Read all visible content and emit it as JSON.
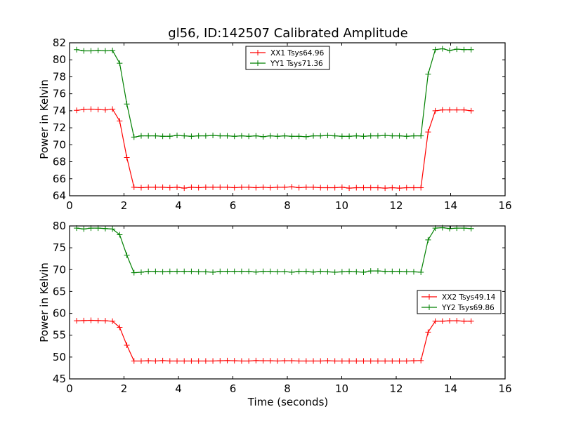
{
  "chart_data": [
    {
      "type": "line",
      "title": "gl56, ID:142507 Calibrated Amplitude",
      "xlabel": "",
      "ylabel": "Power in Kelvin",
      "xlim": [
        0,
        16
      ],
      "ylim": [
        64,
        82
      ],
      "xticks": [
        0,
        2,
        4,
        6,
        8,
        10,
        12,
        14,
        16
      ],
      "yticks": [
        64,
        66,
        68,
        70,
        72,
        74,
        76,
        78,
        80,
        82
      ],
      "legend": "top-center",
      "x_start": 0.26,
      "x_step": 0.2635,
      "series": [
        {
          "name": "XX1 Tsys64.96",
          "color": "#ff0000",
          "values": [
            74.05,
            74.15,
            74.2,
            74.15,
            74.1,
            74.2,
            72.8,
            68.5,
            65.0,
            64.95,
            65.0,
            65.0,
            65.0,
            64.95,
            65.0,
            64.9,
            65.0,
            64.95,
            65.0,
            65.0,
            65.0,
            65.0,
            64.95,
            65.0,
            65.0,
            64.95,
            65.0,
            64.95,
            65.0,
            65.0,
            65.05,
            64.95,
            65.0,
            65.0,
            64.95,
            64.95,
            64.95,
            65.0,
            64.9,
            64.95,
            64.95,
            64.95,
            64.95,
            64.9,
            64.95,
            64.9,
            64.95,
            64.95,
            64.95,
            71.5,
            74.0,
            74.1,
            74.1,
            74.1,
            74.1,
            74.0
          ]
        },
        {
          "name": "YY1 Tsys71.36",
          "color": "#008000",
          "values": [
            81.2,
            81.05,
            81.05,
            81.1,
            81.05,
            81.1,
            79.6,
            74.8,
            70.9,
            71.05,
            71.05,
            71.05,
            71.0,
            71.0,
            71.1,
            71.05,
            71.0,
            71.05,
            71.05,
            71.1,
            71.05,
            71.05,
            71.0,
            71.05,
            71.0,
            71.05,
            70.95,
            71.05,
            71.0,
            71.05,
            71.0,
            71.0,
            70.95,
            71.05,
            71.05,
            71.1,
            71.05,
            71.0,
            71.0,
            71.05,
            71.0,
            71.05,
            71.05,
            71.1,
            71.05,
            71.05,
            71.0,
            71.05,
            71.05,
            78.3,
            81.2,
            81.3,
            81.1,
            81.25,
            81.2,
            81.2
          ]
        }
      ]
    },
    {
      "type": "line",
      "title": "",
      "xlabel": "Time (seconds)",
      "ylabel": "Power in Kelvin",
      "xlim": [
        0,
        16
      ],
      "ylim": [
        45,
        80
      ],
      "xticks": [
        0,
        2,
        4,
        6,
        8,
        10,
        12,
        14,
        16
      ],
      "yticks": [
        45,
        50,
        55,
        60,
        65,
        70,
        75,
        80
      ],
      "legend": "center-right",
      "x_start": 0.26,
      "x_step": 0.2635,
      "series": [
        {
          "name": "XX2 Tsys49.14",
          "color": "#ff0000",
          "values": [
            58.3,
            58.35,
            58.4,
            58.35,
            58.3,
            58.2,
            56.8,
            52.7,
            49.1,
            49.1,
            49.15,
            49.1,
            49.2,
            49.1,
            49.1,
            49.1,
            49.1,
            49.1,
            49.1,
            49.1,
            49.15,
            49.2,
            49.15,
            49.1,
            49.1,
            49.2,
            49.15,
            49.15,
            49.1,
            49.15,
            49.15,
            49.1,
            49.1,
            49.1,
            49.1,
            49.15,
            49.1,
            49.1,
            49.1,
            49.1,
            49.1,
            49.1,
            49.1,
            49.1,
            49.1,
            49.1,
            49.1,
            49.15,
            49.2,
            55.7,
            58.2,
            58.2,
            58.3,
            58.3,
            58.2,
            58.2
          ]
        },
        {
          "name": "YY2 Tsys69.86",
          "color": "#008000",
          "values": [
            79.5,
            79.3,
            79.5,
            79.5,
            79.4,
            79.3,
            78.0,
            73.3,
            69.3,
            69.4,
            69.6,
            69.6,
            69.5,
            69.6,
            69.6,
            69.6,
            69.6,
            69.5,
            69.5,
            69.4,
            69.6,
            69.6,
            69.6,
            69.6,
            69.6,
            69.45,
            69.6,
            69.6,
            69.5,
            69.55,
            69.4,
            69.6,
            69.6,
            69.45,
            69.6,
            69.5,
            69.4,
            69.5,
            69.6,
            69.5,
            69.4,
            69.7,
            69.7,
            69.6,
            69.6,
            69.6,
            69.5,
            69.5,
            69.4,
            76.8,
            79.5,
            79.6,
            79.4,
            79.5,
            79.5,
            79.4
          ]
        }
      ]
    }
  ]
}
